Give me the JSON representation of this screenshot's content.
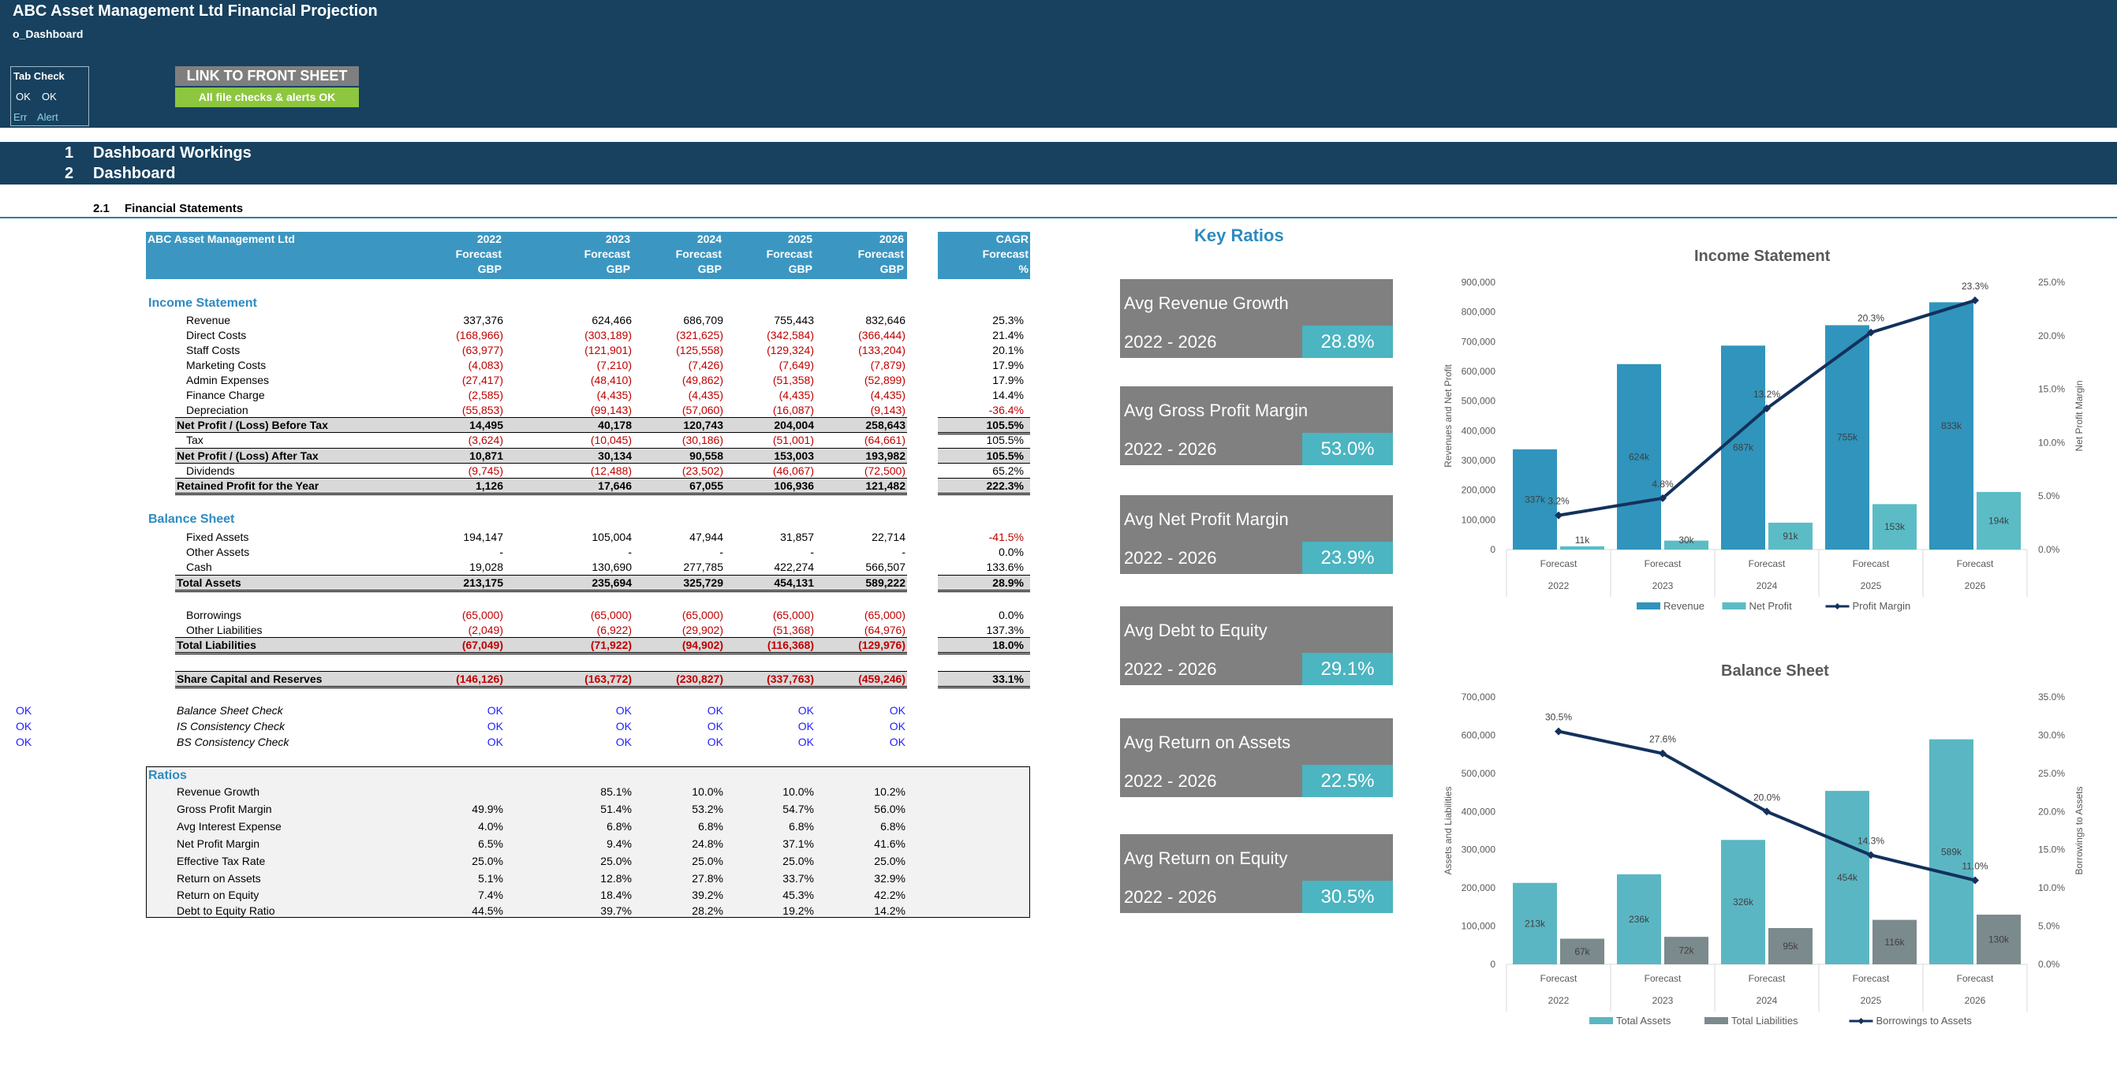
{
  "header": {
    "title": "ABC Asset Management Ltd Financial Projection",
    "sheet": "o_Dashboard",
    "tab_check": {
      "title": "Tab Check",
      "r1c1": "OK",
      "r1c2": "OK",
      "r2c1": "Err",
      "r2c2": "Alert"
    },
    "link_button": "LINK TO FRONT SHEET",
    "alert_status": "All file checks & alerts OK"
  },
  "sections": [
    {
      "num": "1",
      "label": "Dashboard Workings"
    },
    {
      "num": "2",
      "label": "Dashboard"
    }
  ],
  "subsection": {
    "num": "2.1",
    "label": "Financial Statements"
  },
  "table": {
    "company": "ABC Asset Management Ltd",
    "years": [
      "2022",
      "2023",
      "2024",
      "2025",
      "2026"
    ],
    "row2": "Forecast",
    "row3": "GBP",
    "cagr_h1": "CAGR",
    "cagr_h2": "Forecast",
    "cagr_h3": "%",
    "income_title": "Income Statement",
    "income_rows": [
      {
        "label": "Revenue",
        "values": [
          "337,376",
          "624,466",
          "686,709",
          "755,443",
          "832,646"
        ],
        "cagr": "25.3%"
      },
      {
        "label": "Direct Costs",
        "values": [
          "(168,966)",
          "(303,189)",
          "(321,625)",
          "(342,584)",
          "(366,444)"
        ],
        "cagr": "21.4%"
      },
      {
        "label": "Staff Costs",
        "values": [
          "(63,977)",
          "(121,901)",
          "(125,558)",
          "(129,324)",
          "(133,204)"
        ],
        "cagr": "20.1%"
      },
      {
        "label": "Marketing Costs",
        "values": [
          "(4,083)",
          "(7,210)",
          "(7,426)",
          "(7,649)",
          "(7,879)"
        ],
        "cagr": "17.9%"
      },
      {
        "label": "Admin Expenses",
        "values": [
          "(27,417)",
          "(48,410)",
          "(49,862)",
          "(51,358)",
          "(52,899)"
        ],
        "cagr": "17.9%"
      },
      {
        "label": "Finance Charge",
        "values": [
          "(2,585)",
          "(4,435)",
          "(4,435)",
          "(4,435)",
          "(4,435)"
        ],
        "cagr": "14.4%"
      },
      {
        "label": "Depreciation",
        "values": [
          "(55,853)",
          "(99,143)",
          "(57,060)",
          "(16,087)",
          "(9,143)"
        ],
        "cagr": "-36.4%"
      }
    ],
    "npbt": {
      "label": "Net Profit / (Loss) Before Tax",
      "values": [
        "14,495",
        "40,178",
        "120,743",
        "204,004",
        "258,643"
      ],
      "cagr": "105.5%"
    },
    "tax": {
      "label": "Tax",
      "values": [
        "(3,624)",
        "(10,045)",
        "(30,186)",
        "(51,001)",
        "(64,661)"
      ],
      "cagr": "105.5%"
    },
    "npat": {
      "label": "Net Profit / (Loss) After Tax",
      "values": [
        "10,871",
        "30,134",
        "90,558",
        "153,003",
        "193,982"
      ],
      "cagr": "105.5%"
    },
    "dividends": {
      "label": "Dividends",
      "values": [
        "(9,745)",
        "(12,488)",
        "(23,502)",
        "(46,067)",
        "(72,500)"
      ],
      "cagr": "65.2%"
    },
    "retained": {
      "label": "Retained Profit for the Year",
      "values": [
        "1,126",
        "17,646",
        "67,055",
        "106,936",
        "121,482"
      ],
      "cagr": "222.3%"
    },
    "bs_title": "Balance Sheet",
    "fixed_assets": {
      "label": "Fixed Assets",
      "values": [
        "194,147",
        "105,004",
        "47,944",
        "31,857",
        "22,714"
      ],
      "cagr": "-41.5%"
    },
    "other_assets": {
      "label": "Other Assets",
      "values": [
        "-",
        "-",
        "-",
        "-",
        "-"
      ],
      "cagr": "0.0%"
    },
    "cash": {
      "label": "Cash",
      "values": [
        "19,028",
        "130,690",
        "277,785",
        "422,274",
        "566,507"
      ],
      "cagr": "133.6%"
    },
    "total_assets": {
      "label": "Total Assets",
      "values": [
        "213,175",
        "235,694",
        "325,729",
        "454,131",
        "589,222"
      ],
      "cagr": "28.9%"
    },
    "borrowings": {
      "label": "Borrowings",
      "values": [
        "(65,000)",
        "(65,000)",
        "(65,000)",
        "(65,000)",
        "(65,000)"
      ],
      "cagr": "0.0%"
    },
    "other_liab": {
      "label": "Other Liabilities",
      "values": [
        "(2,049)",
        "(6,922)",
        "(29,902)",
        "(51,368)",
        "(64,976)"
      ],
      "cagr": "137.3%"
    },
    "total_liab": {
      "label": "Total Liabilities",
      "values": [
        "(67,049)",
        "(71,922)",
        "(94,902)",
        "(116,368)",
        "(129,976)"
      ],
      "cagr": "18.0%"
    },
    "share_cap": {
      "label": "Share Capital and Reserves",
      "values": [
        "(146,126)",
        "(163,772)",
        "(230,827)",
        "(337,763)",
        "(459,246)"
      ],
      "cagr": "33.1%"
    },
    "checks": [
      {
        "flag": "OK",
        "label": "Balance Sheet Check",
        "values": [
          "OK",
          "OK",
          "OK",
          "OK",
          "OK"
        ]
      },
      {
        "flag": "OK",
        "label": "IS Consistency Check",
        "values": [
          "OK",
          "OK",
          "OK",
          "OK",
          "OK"
        ]
      },
      {
        "flag": "OK",
        "label": "BS Consistency Check",
        "values": [
          "OK",
          "OK",
          "OK",
          "OK",
          "OK"
        ]
      }
    ],
    "ratios_title": "Ratios",
    "ratios": [
      {
        "label": "Revenue Growth",
        "values": [
          "",
          "85.1%",
          "10.0%",
          "10.0%",
          "10.2%"
        ]
      },
      {
        "label": "Gross Profit Margin",
        "values": [
          "49.9%",
          "51.4%",
          "53.2%",
          "54.7%",
          "56.0%"
        ]
      },
      {
        "label": "Avg Interest Expense",
        "values": [
          "4.0%",
          "6.8%",
          "6.8%",
          "6.8%",
          "6.8%"
        ]
      },
      {
        "label": "Net Profit Margin",
        "values": [
          "6.5%",
          "9.4%",
          "24.8%",
          "37.1%",
          "41.6%"
        ]
      },
      {
        "label": "Effective Tax Rate",
        "values": [
          "25.0%",
          "25.0%",
          "25.0%",
          "25.0%",
          "25.0%"
        ]
      },
      {
        "label": "Return on Assets",
        "values": [
          "5.1%",
          "12.8%",
          "27.8%",
          "33.7%",
          "32.9%"
        ]
      },
      {
        "label": "Return on Equity",
        "values": [
          "7.4%",
          "18.4%",
          "39.2%",
          "45.3%",
          "42.2%"
        ]
      },
      {
        "label": "Debt to Equity Ratio",
        "values": [
          "44.5%",
          "39.7%",
          "28.2%",
          "19.2%",
          "14.2%"
        ]
      }
    ]
  },
  "key_ratios": {
    "title": "Key Ratios",
    "cards": [
      {
        "name": "Avg Revenue Growth",
        "range": "2022 - 2026",
        "value": "28.8%"
      },
      {
        "name": "Avg Gross Profit Margin",
        "range": "2022 - 2026",
        "value": "53.0%"
      },
      {
        "name": "Avg Net Profit Margin",
        "range": "2022 - 2026",
        "value": "23.9%"
      },
      {
        "name": "Avg Debt to Equity",
        "range": "2022 - 2026",
        "value": "29.1%"
      },
      {
        "name": "Avg Return on Assets",
        "range": "2022 - 2026",
        "value": "22.5%"
      },
      {
        "name": "Avg Return on Equity",
        "range": "2022 - 2026",
        "value": "30.5%"
      }
    ]
  },
  "colors": {
    "band": "#17415f",
    "header": "#3b97c1",
    "bar1": "#3094bc",
    "bar2": "#5bbcc6",
    "bar_liab": "#7f8c8d",
    "line": "#13315c",
    "card": "#808080",
    "card_value": "#4bb5c1"
  },
  "chart_data": [
    {
      "type": "bar",
      "title": "Income Statement",
      "categories": [
        "2022",
        "2023",
        "2024",
        "2025",
        "2026"
      ],
      "category_sublabel": "Forecast",
      "ylabel": "Revenues and Net Profit",
      "y2label": "Net Profit Margin",
      "ylim": [
        0,
        900000
      ],
      "y2lim": [
        0,
        25
      ],
      "yticks": [
        "0",
        "100,000",
        "200,000",
        "300,000",
        "400,000",
        "500,000",
        "600,000",
        "700,000",
        "800,000",
        "900,000"
      ],
      "y2ticks": [
        "0.0%",
        "5.0%",
        "10.0%",
        "15.0%",
        "20.0%",
        "25.0%"
      ],
      "series": [
        {
          "name": "Revenue",
          "values": [
            337376,
            624466,
            686709,
            755443,
            832646
          ],
          "labels": [
            "337k",
            "624k",
            "687k",
            "755k",
            "833k"
          ]
        },
        {
          "name": "Net Profit",
          "values": [
            10871,
            30134,
            90558,
            153003,
            193982
          ],
          "labels": [
            "11k",
            "30k",
            "91k",
            "153k",
            "194k"
          ]
        },
        {
          "name": "Profit Margin",
          "values": [
            3.2,
            4.8,
            13.2,
            20.3,
            23.3
          ],
          "labels": [
            "3.2%",
            "4.8%",
            "13.2%",
            "20.3%",
            "23.3%"
          ],
          "axis": "right",
          "kind": "line"
        }
      ],
      "legend": "bottom"
    },
    {
      "type": "bar",
      "title": "Balance Sheet",
      "categories": [
        "2022",
        "2023",
        "2024",
        "2025",
        "2026"
      ],
      "category_sublabel": "Forecast",
      "ylabel": "Assets and Liabilities",
      "y2label": "Borrowings to Assets",
      "ylim": [
        0,
        700000
      ],
      "y2lim": [
        0,
        35
      ],
      "yticks": [
        "0",
        "100,000",
        "200,000",
        "300,000",
        "400,000",
        "500,000",
        "600,000",
        "700,000"
      ],
      "y2ticks": [
        "0.0%",
        "5.0%",
        "10.0%",
        "15.0%",
        "20.0%",
        "25.0%",
        "30.0%",
        "35.0%"
      ],
      "series": [
        {
          "name": "Total Assets",
          "values": [
            213175,
            235694,
            325729,
            454131,
            589222
          ],
          "labels": [
            "213k",
            "236k",
            "326k",
            "454k",
            "589k"
          ]
        },
        {
          "name": "Total Liabilities",
          "values": [
            67049,
            71922,
            94902,
            116368,
            129976
          ],
          "labels": [
            "67k",
            "72k",
            "95k",
            "116k",
            "130k"
          ]
        },
        {
          "name": "Borrowings to Assets",
          "values": [
            30.5,
            27.6,
            20.0,
            14.3,
            11.0
          ],
          "labels": [
            "30.5%",
            "27.6%",
            "20.0%",
            "14.3%",
            "11.0%"
          ],
          "axis": "right",
          "kind": "line"
        }
      ],
      "legend": "bottom"
    }
  ]
}
